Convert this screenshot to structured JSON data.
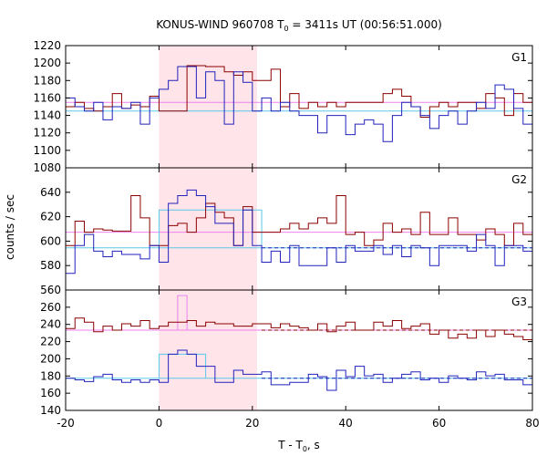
{
  "chart_data": {
    "type": "line",
    "title": "KONUS-WIND 960708 T",
    "title_sub": "0",
    "title_rest": " = 3411s UT (00:56:51.000)",
    "xlabel": "T - T",
    "xlabel_sub": "0",
    "xlabel_rest": ", s",
    "ylabel": "counts / sec",
    "xlim": [
      -20,
      80
    ],
    "xticks": [
      "-20",
      "0",
      "20",
      "40",
      "60",
      "80"
    ],
    "highlight_interval": [
      0,
      21
    ],
    "colors": {
      "red": "#8b0000",
      "blue": "#2222bb",
      "pink": "#ee82ee",
      "cyan": "#5bc8e8",
      "highlight": "#ffe4ea"
    },
    "bin_edges": [
      -20,
      -18,
      -16,
      -14,
      -12,
      -10,
      -8,
      -6,
      -4,
      -2,
      0,
      2,
      4,
      6,
      8,
      10,
      12,
      14,
      16,
      18,
      20,
      22,
      24,
      26,
      28,
      30,
      32,
      34,
      36,
      38,
      40,
      42,
      44,
      46,
      48,
      50,
      52,
      54,
      56,
      58,
      60,
      62,
      64,
      66,
      68,
      70,
      72,
      74,
      76,
      78,
      80
    ],
    "panels": [
      {
        "label": "G1",
        "ylim": [
          1080,
          1220
        ],
        "yticks": [
          "1080",
          "1100",
          "1120",
          "1140",
          "1160",
          "1180",
          "1200",
          "1220"
        ],
        "series_red": [
          1150,
          1155,
          1148,
          1145,
          1150,
          1165,
          1148,
          1152,
          1150,
          1162,
          1145,
          1145,
          1145,
          1197,
          1197,
          1196,
          1196,
          1190,
          1186,
          1190,
          1180,
          1180,
          1193,
          1150,
          1165,
          1148,
          1155,
          1150,
          1155,
          1150,
          1155,
          1155,
          1155,
          1155,
          1165,
          1170,
          1162,
          1150,
          1138,
          1150,
          1155,
          1150,
          1155,
          1155,
          1148,
          1165,
          1160,
          1140,
          1165,
          1155
        ],
        "series_blue": [
          1160,
          1150,
          1145,
          1155,
          1135,
          1150,
          1148,
          1155,
          1130,
          1160,
          1170,
          1180,
          1196,
          1196,
          1160,
          1190,
          1180,
          1130,
          1190,
          1178,
          1145,
          1160,
          1145,
          1155,
          1145,
          1140,
          1140,
          1120,
          1140,
          1140,
          1118,
          1130,
          1135,
          1130,
          1110,
          1140,
          1155,
          1150,
          1140,
          1125,
          1140,
          1145,
          1130,
          1145,
          1155,
          1148,
          1175,
          1170,
          1148,
          1130
        ],
        "pink_level": 1155,
        "cyan_level": 1145,
        "pink_segment": null,
        "cyan_segment": null
      },
      {
        "label": "G2",
        "ylim": [
          560,
          670
        ],
        "yticks": [
          "560",
          "580",
          "600",
          "620",
          "640",
          "660"
        ],
        "series_red": [
          600,
          622,
          612,
          615,
          614,
          613,
          613,
          645,
          625,
          600,
          600,
          618,
          620,
          612,
          625,
          638,
          630,
          625,
          600,
          635,
          612,
          612,
          612,
          615,
          620,
          615,
          620,
          625,
          620,
          645,
          610,
          612,
          600,
          605,
          620,
          612,
          615,
          610,
          630,
          610,
          610,
          625,
          610,
          610,
          605,
          615,
          610,
          600,
          620,
          610
        ],
        "series_blue": [
          575,
          600,
          610,
          595,
          590,
          595,
          592,
          592,
          588,
          600,
          585,
          638,
          645,
          650,
          645,
          635,
          620,
          620,
          600,
          632,
          600,
          585,
          595,
          585,
          600,
          582,
          582,
          582,
          598,
          585,
          600,
          595,
          595,
          600,
          592,
          600,
          590,
          600,
          598,
          582,
          600,
          600,
          600,
          595,
          610,
          600,
          582,
          600,
          600,
          595
        ],
        "pink_level": 612,
        "cyan_level": 598,
        "pink_segment": null,
        "cyan_segment": [
          0,
          22,
          632
        ]
      },
      {
        "label": "G3",
        "ylim": [
          140,
          290
        ],
        "yticks": [
          "140",
          "160",
          "180",
          "200",
          "220",
          "240",
          "260",
          "280"
        ],
        "series_red": [
          242,
          255,
          250,
          238,
          245,
          240,
          248,
          245,
          252,
          242,
          245,
          250,
          250,
          252,
          245,
          250,
          248,
          248,
          245,
          245,
          248,
          248,
          243,
          248,
          245,
          243,
          240,
          248,
          238,
          245,
          250,
          240,
          240,
          250,
          245,
          252,
          242,
          245,
          248,
          235,
          240,
          230,
          235,
          230,
          240,
          232,
          240,
          235,
          232,
          228
        ],
        "series_blue": [
          180,
          178,
          176,
          182,
          185,
          178,
          175,
          178,
          175,
          178,
          175,
          210,
          215,
          210,
          195,
          195,
          175,
          175,
          190,
          185,
          185,
          188,
          172,
          172,
          175,
          175,
          185,
          182,
          165,
          190,
          182,
          195,
          183,
          185,
          175,
          180,
          185,
          188,
          178,
          180,
          175,
          183,
          180,
          178,
          188,
          183,
          185,
          178,
          178,
          172
        ],
        "pink_level": 240,
        "cyan_level": 180,
        "pink_segment": [
          0,
          6,
          283
        ],
        "cyan_segment": [
          0,
          10,
          210
        ]
      }
    ]
  }
}
